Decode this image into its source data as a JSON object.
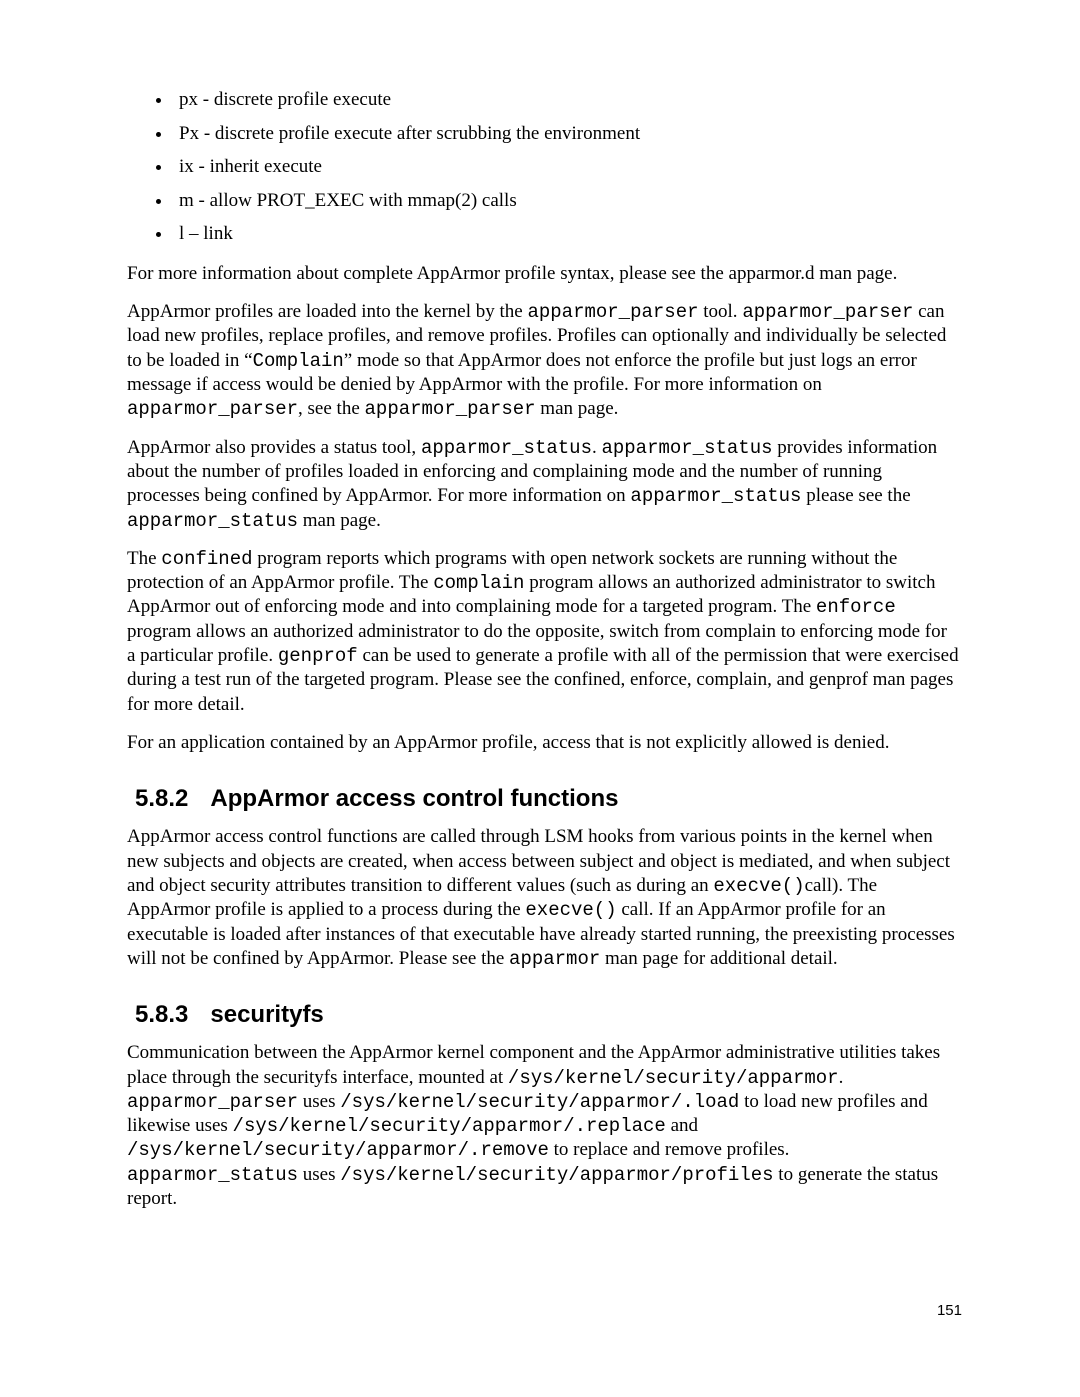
{
  "bullets": [
    "px - discrete profile execute",
    "Px - discrete profile execute after scrubbing the environment",
    "ix - inherit execute",
    "m - allow PROT_EXEC with mmap(2) calls",
    "l – link"
  ],
  "para_manref": "For more information about complete AppArmor profile syntax, please see the apparmor.d man page.",
  "p_parser": {
    "t1": "AppArmor profiles are loaded into the kernel by the ",
    "c1": "apparmor_parser",
    "t2": " tool. ",
    "c2": "apparmor_parser",
    "t3": " can load new profiles, replace profiles, and remove profiles. Profiles can optionally and individually be selected to be loaded in “",
    "c3": "Complain",
    "t4": "” mode so that AppArmor does not enforce the profile but just logs an error message if access would be denied by AppArmor with the profile. For more information on ",
    "c4": "apparmor_parser",
    "t5": ", see the ",
    "c5": "apparmor_parser",
    "t6": " man page."
  },
  "p_status": {
    "t1": "AppArmor also provides a status tool, ",
    "c1": "apparmor_status",
    "t2": ". ",
    "c2": "apparmor_status",
    "t3": " provides information about the number of profiles loaded in enforcing and complaining mode and the number of running processes being confined by AppArmor. For more information on ",
    "c3": "apparmor_status",
    "t4": " please see the ",
    "c4": "apparmor_status",
    "t5": " man page."
  },
  "p_tools": {
    "t1": "The ",
    "c1": "confined",
    "t2": " program reports which programs with open network sockets are running without the protection of an AppArmor profile. The ",
    "c2": "complain",
    "t3": " program allows an authorized administrator to switch AppArmor out of enforcing mode and into complaining mode for a targeted program. The ",
    "c3": "enforce",
    "t4": " program allows an authorized administrator to do the opposite, switch from complain to enforcing mode for a particular profile. ",
    "c4": "genprof",
    "t5": " can be used to generate a profile with all of the permission that were exercised during a test run of the targeted program. Please see the confined, enforce, complain, and genprof man pages for more detail."
  },
  "para_deny": "For an application contained by an AppArmor profile, access that is not explicitly allowed is denied.",
  "sec582": {
    "num": "5.8.2",
    "title": "AppArmor access control functions"
  },
  "p_582": {
    "t1": "AppArmor access control functions are called through LSM hooks from various points in the kernel when new subjects and objects are created, when access between subject and object is mediated, and when subject and object security attributes transition to different values (such as during an ",
    "c1": "execve()",
    "t2": "call). The AppArmor profile is applied to a process during the ",
    "c2": "execve()",
    "t3": " call. If an AppArmor profile for an executable is loaded after instances of that executable have already started running, the preexisting processes will not be confined by AppArmor. Please see the ",
    "c3": "apparmor",
    "t4": " man page for additional detail."
  },
  "sec583": {
    "num": "5.8.3",
    "title": "securityfs"
  },
  "p_583": {
    "t1": "Communication between the AppArmor kernel component and the AppArmor administrative utilities takes place through the securityfs interface, mounted at  ",
    "c1": "/sys/kernel/security/apparmor",
    "t2": ". ",
    "c2": "apparmor_parser",
    "t3": " uses ",
    "c3": "/sys/kernel/security/apparmor/.load",
    "t4": " to load new profiles and likewise uses ",
    "c4": "/sys/kernel/security/apparmor/.replace",
    "t5": " and ",
    "c5": "/sys/kernel/security/apparmor/.remove",
    "t6": " to replace and remove profiles. ",
    "c6": "apparmor_status",
    "t7": " uses ",
    "c7": "/sys/kernel/security/apparmor/profiles",
    "t8": " to generate the status report."
  },
  "page_number": "151"
}
